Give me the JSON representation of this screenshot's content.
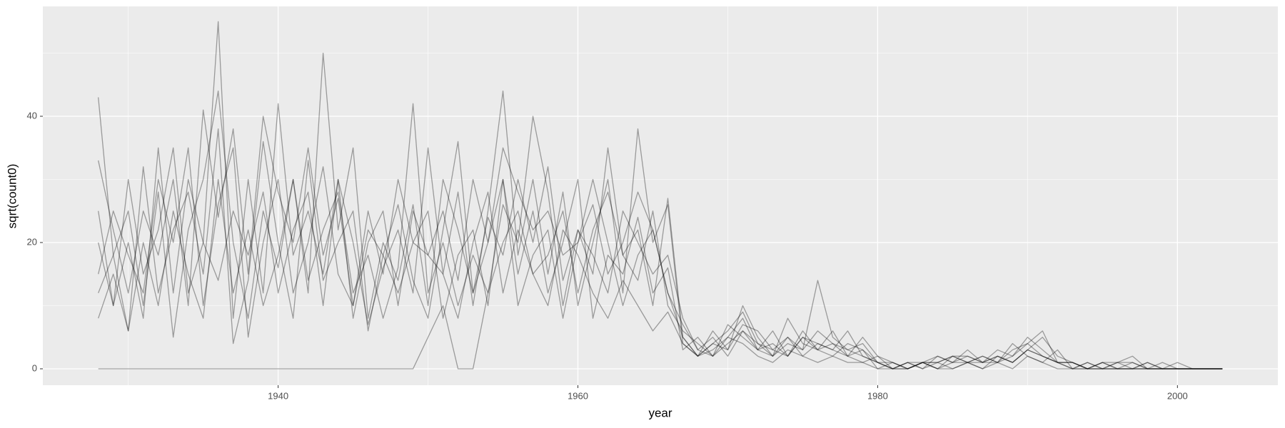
{
  "chart_data": {
    "type": "line",
    "x_label": "year",
    "y_label": "sqrt(count0)",
    "x": [
      1928,
      1929,
      1930,
      1931,
      1932,
      1933,
      1934,
      1935,
      1936,
      1937,
      1938,
      1939,
      1940,
      1941,
      1942,
      1943,
      1944,
      1945,
      1946,
      1947,
      1948,
      1949,
      1950,
      1951,
      1952,
      1953,
      1954,
      1955,
      1956,
      1957,
      1958,
      1959,
      1960,
      1961,
      1962,
      1963,
      1964,
      1965,
      1966,
      1967,
      1968,
      1969,
      1970,
      1971,
      1972,
      1973,
      1974,
      1975,
      1976,
      1977,
      1978,
      1979,
      1980,
      1981,
      1982,
      1983,
      1984,
      1985,
      1986,
      1987,
      1988,
      1989,
      1990,
      1991,
      1992,
      1993,
      1994,
      1995,
      1996,
      1997,
      1998,
      1999,
      2000,
      2001,
      2002,
      2003
    ],
    "series": [
      {
        "values": [
          33,
          22,
          12,
          25,
          18,
          30,
          10,
          41,
          24,
          38,
          15,
          40,
          28,
          20,
          35,
          18,
          27,
          10,
          25,
          15,
          30,
          20,
          18,
          25,
          14,
          30,
          20,
          35,
          28,
          22,
          25,
          18,
          20,
          26,
          15,
          20,
          28,
          22,
          12,
          5,
          2,
          4,
          6,
          9,
          4,
          2,
          5,
          3,
          6,
          4,
          3,
          2,
          1,
          1,
          0,
          1,
          1,
          2,
          1,
          1,
          2,
          1,
          3,
          2,
          1,
          0,
          1,
          0,
          0,
          1,
          0,
          0,
          0,
          0,
          0,
          0
        ]
      },
      {
        "values": [
          12,
          18,
          25,
          10,
          28,
          5,
          22,
          30,
          44,
          20,
          8,
          25,
          16,
          30,
          12,
          50,
          22,
          35,
          8,
          20,
          14,
          26,
          10,
          30,
          22,
          12,
          24,
          18,
          30,
          20,
          32,
          14,
          22,
          18,
          12,
          25,
          20,
          15,
          18,
          8,
          3,
          2,
          5,
          8,
          3,
          4,
          2,
          6,
          3,
          6,
          2,
          1,
          2,
          0,
          1,
          0,
          1,
          2,
          1,
          2,
          1,
          3,
          4,
          2,
          1,
          1,
          0,
          1,
          0,
          0,
          1,
          0,
          0,
          0,
          0,
          0
        ]
      },
      {
        "values": [
          20,
          10,
          30,
          15,
          22,
          35,
          12,
          20,
          55,
          8,
          30,
          12,
          42,
          18,
          25,
          15,
          30,
          20,
          7,
          16,
          22,
          12,
          35,
          15,
          28,
          10,
          25,
          44,
          18,
          30,
          15,
          28,
          10,
          20,
          30,
          12,
          38,
          20,
          26,
          4,
          2,
          6,
          3,
          10,
          5,
          2,
          4,
          3,
          14,
          5,
          3,
          4,
          1,
          0,
          1,
          0,
          2,
          1,
          3,
          1,
          2,
          1,
          3,
          5,
          2,
          1,
          0,
          1,
          1,
          2,
          0,
          1,
          0,
          0,
          0,
          0
        ]
      },
      {
        "values": [
          8,
          15,
          6,
          20,
          10,
          25,
          15,
          8,
          30,
          12,
          22,
          10,
          18,
          30,
          14,
          22,
          28,
          12,
          18,
          8,
          16,
          42,
          12,
          20,
          10,
          18,
          12,
          26,
          20,
          40,
          28,
          10,
          22,
          15,
          35,
          18,
          14,
          25,
          10,
          6,
          4,
          2,
          7,
          5,
          3,
          6,
          2,
          5,
          4,
          3,
          6,
          2,
          1,
          0,
          1,
          1,
          0,
          2,
          2,
          1,
          3,
          2,
          5,
          3,
          1,
          1,
          0,
          0,
          1,
          0,
          0,
          0,
          1,
          0,
          0,
          0
        ]
      },
      {
        "values": [
          15,
          25,
          18,
          12,
          30,
          20,
          35,
          10,
          26,
          35,
          5,
          20,
          30,
          12,
          20,
          32,
          15,
          10,
          22,
          18,
          12,
          20,
          25,
          8,
          18,
          22,
          10,
          30,
          15,
          25,
          12,
          20,
          30,
          8,
          18,
          15,
          24,
          12,
          16,
          3,
          5,
          2,
          4,
          6,
          3,
          2,
          8,
          4,
          3,
          2,
          4,
          3,
          0,
          1,
          0,
          1,
          0,
          1,
          2,
          1,
          1,
          4,
          2,
          1,
          3,
          0,
          1,
          0,
          1,
          1,
          0,
          0,
          0,
          0,
          0,
          0
        ]
      },
      {
        "values": [
          0,
          0,
          0,
          0,
          0,
          0,
          0,
          0,
          0,
          0,
          0,
          0,
          0,
          0,
          0,
          0,
          0,
          0,
          0,
          0,
          0,
          0,
          5,
          10,
          0,
          0,
          12,
          20,
          25,
          15,
          10,
          22,
          18,
          12,
          8,
          14,
          10,
          6,
          9,
          4,
          2,
          3,
          5,
          4,
          2,
          1,
          3,
          2,
          1,
          2,
          1,
          1,
          0,
          0,
          0,
          1,
          0,
          0,
          1,
          0,
          1,
          0,
          2,
          1,
          0,
          0,
          0,
          0,
          0,
          0,
          0,
          0,
          0,
          0,
          0,
          0
        ]
      },
      {
        "values": [
          43,
          18,
          6,
          32,
          12,
          22,
          28,
          15,
          38,
          4,
          14,
          36,
          20,
          8,
          33,
          14,
          20,
          25,
          6,
          18,
          26,
          14,
          8,
          22,
          36,
          12,
          20,
          30,
          10,
          18,
          22,
          8,
          20,
          30,
          20,
          10,
          18,
          22,
          12,
          7,
          3,
          5,
          2,
          6,
          4,
          3,
          5,
          2,
          4,
          3,
          2,
          5,
          2,
          1,
          0,
          1,
          1,
          0,
          1,
          2,
          1,
          2,
          4,
          6,
          1,
          0,
          0,
          1,
          0,
          0,
          0,
          0,
          0,
          0,
          0,
          0
        ]
      },
      {
        "values": [
          25,
          10,
          20,
          8,
          35,
          12,
          30,
          20,
          14,
          25,
          18,
          28,
          12,
          22,
          28,
          10,
          30,
          8,
          20,
          25,
          10,
          25,
          18,
          15,
          8,
          20,
          28,
          12,
          22,
          15,
          18,
          25,
          12,
          22,
          28,
          18,
          22,
          10,
          27,
          5,
          2,
          4,
          3,
          7,
          6,
          3,
          2,
          5,
          3,
          4,
          2,
          3,
          1,
          0,
          0,
          1,
          2,
          1,
          1,
          0,
          2,
          1,
          3,
          2,
          1,
          1,
          0,
          0,
          0,
          0,
          1,
          0,
          0,
          0,
          0,
          0
        ]
      }
    ],
    "color": "#000000",
    "opacity": 0.35,
    "xlim": [
      1924.3,
      2006.7
    ],
    "xticks": [
      1940,
      1960,
      1980,
      2000
    ],
    "x_minor_ticks": [
      1930,
      1950,
      1970,
      1990
    ],
    "ylim": [
      -2.6,
      57.4
    ],
    "yticks": [
      0,
      20,
      40
    ],
    "y_minor_ticks": [
      10,
      30,
      50
    ],
    "grid": true
  }
}
